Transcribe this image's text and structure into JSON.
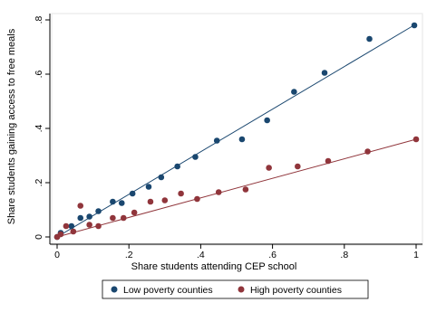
{
  "chart_data": {
    "type": "scatter",
    "title": "",
    "xlabel": "Share students attending CEP school",
    "ylabel": "Share students gaining access to free meals",
    "xlim": [
      0,
      1
    ],
    "ylim": [
      0,
      0.8
    ],
    "x_ticks": [
      0,
      0.2,
      0.4,
      0.6,
      0.8,
      1
    ],
    "x_tick_labels": [
      "0",
      ".2",
      ".4",
      ".6",
      ".8",
      "1"
    ],
    "y_ticks": [
      0,
      0.2,
      0.4,
      0.6,
      0.8
    ],
    "y_tick_labels": [
      "0",
      ".2",
      ".4",
      ".6",
      ".8"
    ],
    "grid": false,
    "legend_position": "bottom",
    "series": [
      {
        "name": "Low poverty counties",
        "color": "#1a476f",
        "points": [
          [
            0.0,
            0.0
          ],
          [
            0.01,
            0.015
          ],
          [
            0.04,
            0.04
          ],
          [
            0.065,
            0.07
          ],
          [
            0.09,
            0.075
          ],
          [
            0.115,
            0.095
          ],
          [
            0.155,
            0.13
          ],
          [
            0.18,
            0.125
          ],
          [
            0.21,
            0.16
          ],
          [
            0.255,
            0.185
          ],
          [
            0.29,
            0.22
          ],
          [
            0.335,
            0.26
          ],
          [
            0.385,
            0.295
          ],
          [
            0.445,
            0.355
          ],
          [
            0.515,
            0.36
          ],
          [
            0.585,
            0.43
          ],
          [
            0.66,
            0.535
          ],
          [
            0.745,
            0.605
          ],
          [
            0.87,
            0.73
          ],
          [
            0.995,
            0.78
          ]
        ],
        "fit": [
          [
            0,
            0.0
          ],
          [
            1,
            0.785
          ]
        ]
      },
      {
        "name": "High poverty counties",
        "color": "#90353b",
        "points": [
          [
            0.0,
            0.0
          ],
          [
            0.01,
            0.01
          ],
          [
            0.025,
            0.04
          ],
          [
            0.045,
            0.02
          ],
          [
            0.065,
            0.115
          ],
          [
            0.09,
            0.045
          ],
          [
            0.115,
            0.04
          ],
          [
            0.155,
            0.07
          ],
          [
            0.185,
            0.07
          ],
          [
            0.215,
            0.09
          ],
          [
            0.26,
            0.13
          ],
          [
            0.3,
            0.135
          ],
          [
            0.345,
            0.16
          ],
          [
            0.39,
            0.14
          ],
          [
            0.45,
            0.165
          ],
          [
            0.525,
            0.175
          ],
          [
            0.59,
            0.255
          ],
          [
            0.67,
            0.26
          ],
          [
            0.755,
            0.28
          ],
          [
            0.865,
            0.315
          ],
          [
            1.0,
            0.36
          ]
        ],
        "fit": [
          [
            0,
            0.0
          ],
          [
            1,
            0.36
          ]
        ]
      }
    ]
  }
}
